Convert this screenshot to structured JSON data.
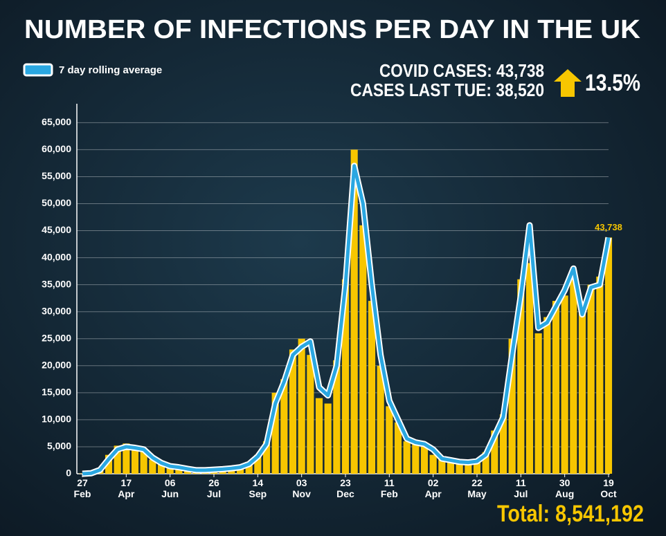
{
  "chart_data": {
    "type": "combo",
    "title": "NUMBER OF INFECTIONS PER DAY IN THE UK",
    "annotations": {
      "cases": "COVID CASES: 43,738",
      "last": "CASES LAST TUE: 38,520",
      "change": "13.5%",
      "total": "Total: 8,541,192"
    },
    "categories": [
      "27\nFeb",
      null,
      null,
      null,
      null,
      "17\nApr",
      null,
      null,
      null,
      null,
      "06\nJun",
      null,
      null,
      null,
      null,
      "26\nJul",
      null,
      null,
      null,
      null,
      "14\nSep",
      null,
      null,
      null,
      null,
      "03\nNov",
      null,
      null,
      null,
      null,
      "23\nDec",
      null,
      null,
      null,
      null,
      "11\nFeb",
      null,
      null,
      null,
      null,
      "02\nApr",
      null,
      null,
      null,
      null,
      "22\nMay",
      null,
      null,
      null,
      null,
      "11\nJul",
      null,
      null,
      null,
      null,
      "30\nAug",
      null,
      null,
      null,
      null,
      "19\nOct"
    ],
    "bars": {
      "color": "#f7c600",
      "values": [
        50,
        200,
        900,
        3500,
        5200,
        5600,
        4500,
        4300,
        2600,
        1800,
        1500,
        1000,
        800,
        600,
        700,
        800,
        900,
        1100,
        1300,
        2200,
        3500,
        6000,
        15000,
        17500,
        23000,
        25000,
        22000,
        14000,
        13000,
        21000,
        36000,
        60000,
        46000,
        32000,
        20000,
        12500,
        9500,
        6000,
        5500,
        5000,
        3500,
        2600,
        2400,
        2000,
        2300,
        2500,
        4000,
        8000,
        11000,
        25000,
        36000,
        39000,
        26000,
        29000,
        32000,
        33000,
        37000,
        30000,
        35000,
        36500,
        43738
      ]
    },
    "series": [
      {
        "name": "7 day rolling average",
        "color": "#2aa7e1",
        "values": [
          0,
          100,
          700,
          2700,
          4500,
          5000,
          4800,
          4500,
          3000,
          2000,
          1400,
          1200,
          900,
          650,
          650,
          750,
          850,
          1000,
          1200,
          1800,
          3200,
          5500,
          13000,
          17000,
          22000,
          23500,
          24500,
          16000,
          14500,
          20000,
          35000,
          57000,
          50000,
          35000,
          22000,
          13500,
          10000,
          6500,
          5800,
          5500,
          4500,
          2800,
          2500,
          2200,
          2100,
          2300,
          3500,
          7000,
          10500,
          22000,
          33000,
          46000,
          27000,
          28000,
          31000,
          34000,
          38000,
          29500,
          34500,
          35000,
          43738
        ],
        "value_labels": [
          null,
          null,
          null,
          null,
          null,
          null,
          null,
          null,
          null,
          null,
          null,
          null,
          null,
          null,
          null,
          null,
          null,
          null,
          null,
          null,
          null,
          null,
          null,
          null,
          null,
          null,
          null,
          null,
          null,
          null,
          null,
          null,
          null,
          null,
          null,
          null,
          null,
          null,
          null,
          null,
          null,
          null,
          null,
          null,
          null,
          null,
          null,
          null,
          null,
          null,
          null,
          null,
          null,
          null,
          null,
          null,
          null,
          null,
          null,
          null,
          "43,738"
        ]
      }
    ],
    "ylim": [
      0,
      68500
    ],
    "yticks": [
      0,
      {
        "value": 5000,
        "label": "5,000"
      },
      {
        "value": 10000,
        "label": "10,000"
      },
      {
        "value": 15000,
        "label": "15,000"
      },
      {
        "value": 20000,
        "label": "20,000"
      },
      {
        "value": 25000,
        "label": "25,000"
      },
      {
        "value": 30000,
        "label": "30,000"
      },
      {
        "value": 35000,
        "label": "35,000"
      },
      {
        "value": 40000,
        "label": "40,000"
      },
      {
        "value": 45000,
        "label": "45,000"
      },
      {
        "value": 50000,
        "label": "50,000"
      },
      {
        "value": 55000,
        "label": "55,000"
      },
      {
        "value": 60000,
        "label": "60,000"
      },
      {
        "value": 65000,
        "label": "65,000"
      }
    ],
    "grid": true
  }
}
